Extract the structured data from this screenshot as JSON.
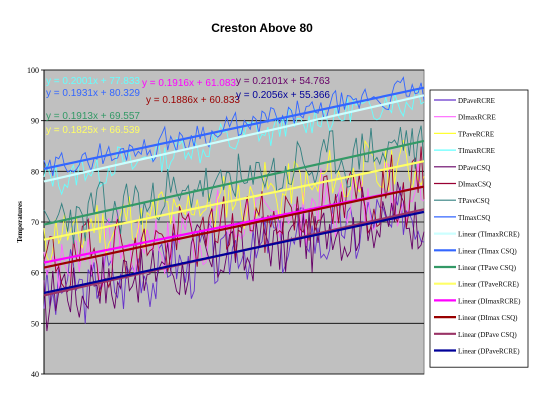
{
  "chart_data": {
    "type": "line",
    "title": "Creston Above 80",
    "xlabel": "",
    "ylabel": "Temperatures",
    "ylim": [
      40,
      100
    ],
    "yticks": [
      40,
      50,
      60,
      70,
      80,
      90,
      100
    ],
    "n_points": 130,
    "grid": true,
    "legend_position": "right",
    "plot_background": "#c0c0c0",
    "series": [
      {
        "name": "DPaveRCRE",
        "color": "#6633cc",
        "kind": "data",
        "line_start": 56.0,
        "line_end": 72.0,
        "amp": 6,
        "seed": 3
      },
      {
        "name": "DImaxRCRE",
        "color": "#ff66ff",
        "kind": "data",
        "line_start": 62.0,
        "line_end": 77.0,
        "amp": 6,
        "seed": 7
      },
      {
        "name": "TPaveRCRE",
        "color": "#ffff33",
        "kind": "data",
        "line_start": 66.5,
        "line_end": 82.0,
        "amp": 5,
        "seed": 11
      },
      {
        "name": "TImaxRCRE",
        "color": "#66ffff",
        "kind": "data",
        "line_start": 78.0,
        "line_end": 95.0,
        "amp": 3,
        "seed": 13
      },
      {
        "name": "DPaveCSQ",
        "color": "#660066",
        "kind": "data",
        "line_start": 55.5,
        "line_end": 72.5,
        "amp": 6,
        "seed": 17
      },
      {
        "name": "DImaxCSQ",
        "color": "#990033",
        "kind": "data",
        "line_start": 61.0,
        "line_end": 77.0,
        "amp": 6,
        "seed": 19
      },
      {
        "name": "TPaveCSQ",
        "color": "#338080",
        "kind": "data",
        "line_start": 69.5,
        "line_end": 86.0,
        "amp": 5,
        "seed": 23
      },
      {
        "name": "TImaxCSQ",
        "color": "#3366ff",
        "kind": "data",
        "line_start": 80.5,
        "line_end": 96.5,
        "amp": 2.5,
        "seed": 29
      },
      {
        "name": "Linear (TImaxRCRE)",
        "color": "#ccffff",
        "kind": "trend",
        "line_start": 78.0,
        "line_end": 95.0
      },
      {
        "name": "Linear (TImax CSQ)",
        "color": "#3366ff",
        "kind": "trend",
        "line_start": 80.5,
        "line_end": 96.5
      },
      {
        "name": "Linear (TPave CSQ)",
        "color": "#339966",
        "kind": "trend",
        "line_start": 69.5,
        "line_end": 86.0
      },
      {
        "name": "Linear (TPaveRCRE)",
        "color": "#ffff66",
        "kind": "trend",
        "line_start": 66.5,
        "line_end": 82.0
      },
      {
        "name": "Linear (DImaxRCRE)",
        "color": "#ff00ff",
        "kind": "trend",
        "line_start": 62.0,
        "line_end": 77.0
      },
      {
        "name": "Linear (DImax CSQ)",
        "color": "#990000",
        "kind": "trend",
        "line_start": 61.0,
        "line_end": 77.0
      },
      {
        "name": "Linear (DPave CSQ)",
        "color": "#993366",
        "kind": "trend",
        "line_start": 55.5,
        "line_end": 72.5
      },
      {
        "name": "Linear (DPaveRCRE)",
        "color": "#000099",
        "kind": "trend",
        "line_start": 56.0,
        "line_end": 72.0
      }
    ],
    "annotations": [
      {
        "text": "y = 0.2001x + 77.833",
        "color": "#66ffff"
      },
      {
        "text": "y = 0.1931x + 80.329",
        "color": "#3366ff"
      },
      {
        "text": "y = 0.1916x + 61.083",
        "color": "#ff00ff"
      },
      {
        "text": "y = 0.2101x + 54.763",
        "color": "#660066"
      },
      {
        "text": "y = 0.1886x + 60.833",
        "color": "#990000"
      },
      {
        "text": "y = 0.2056x + 55.366",
        "color": "#000099"
      },
      {
        "text": "y = 0.1913x + 69.557",
        "color": "#339966"
      },
      {
        "text": "y = 0.1825x + 66.539",
        "color": "#ffff66"
      }
    ]
  }
}
